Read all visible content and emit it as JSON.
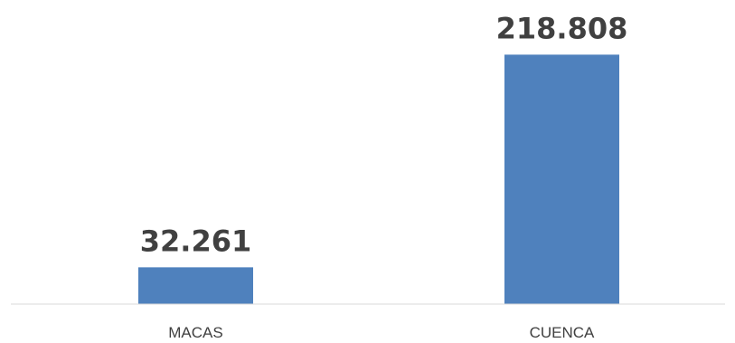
{
  "chart_data": {
    "type": "bar",
    "categories": [
      "MACAS",
      "CUENCA"
    ],
    "values": [
      32261,
      218808
    ],
    "data_labels": [
      "32.261",
      "218.808"
    ],
    "title": "",
    "xlabel": "",
    "ylabel": "",
    "ylim": [
      0,
      235000
    ],
    "grid": false,
    "legend": "none",
    "bar_color": "#4f81bd",
    "axis_color": "#d9d9d9",
    "label_color": "#404040"
  }
}
